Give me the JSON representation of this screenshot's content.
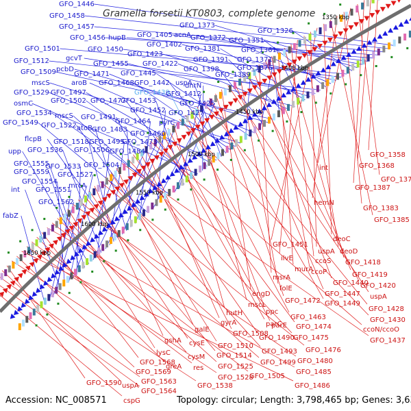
{
  "title": "Gramella forsetii KT0803, complete genome",
  "footer": {
    "accession": "Accession: NC_008571",
    "topology": "Topology: circular; Length: 3,798,465 bp; Genes: 3,637"
  },
  "colors": {
    "forward": "#1a1ae0",
    "reverse": "#e01a1a",
    "backbone": "#6e6e6e",
    "tick": "#1e8a1e",
    "highlight": "#5aaef0"
  },
  "kbp_markers": [
    "1350 kbp",
    "1400 kbp",
    "1450 kbp",
    "1500 kbp",
    "1550 kbp",
    "1600 kbp",
    "1650 kbp"
  ],
  "forward_labels": [
    "GFO_1446",
    "GFO_1458",
    "GFO_1457",
    "GFO_1456",
    "hupB",
    "GFO_1405",
    "acnA",
    "GFO_1373",
    "GFO_1326",
    "GFO_1501",
    "GFO_1450",
    "GFO_1402",
    "GFO_1372",
    "GFO_1351",
    "GFO_1512",
    "gcvT",
    "GFO_1423",
    "GFO_1381",
    "GFO_1361",
    "GFO_1455",
    "GFO_1422",
    "GFO_1391",
    "GFO_1371",
    "GFO_1509",
    "pcbD",
    "GFO_1398",
    "GFO_1376",
    "GFO_1471",
    "GFO_1445",
    "GFO_1389",
    "mscS",
    "aroB",
    "GFO_1468",
    "GFO_1442",
    "uspA",
    "GFO_1529",
    "GFO_1497",
    "GFO_1439",
    "dnrN",
    "osmC",
    "GFO_1502",
    "GFO_1477",
    "GFO_1453",
    "GFO_1412",
    "GFO_1425",
    "GFO_1534",
    "mscS",
    "GFO_1491",
    "GFO_1452",
    "GFO_1427",
    "GFO_1549",
    "GFO_1522",
    "GFO_1464",
    "pyrC",
    "GFO_1483",
    "atoB",
    "GFO_1460",
    "flcpB",
    "GFO_1518",
    "GFO_1495",
    "GFO_1473",
    "GFO_1536",
    "GFO_1506",
    "GFO_1484",
    "upp",
    "GFO_1555",
    "GFO_1559",
    "GFO_1533",
    "GFO_1504",
    "GFO_1527",
    "GFO_1554",
    "int",
    "GFO_1551",
    "mrcA",
    "GFO_1562",
    "fabZ"
  ],
  "reverse_labels": [
    "GFO_1358",
    "GFO_1368",
    "GFO_1387",
    "GFO_1377",
    "int",
    "GFO_1383",
    "hemN",
    "GFO_1385",
    "deoC",
    "GFO_1451",
    "uspA",
    "deoD",
    "ilvE",
    "ccoS",
    "GFO_1418",
    "murA",
    "ccoP",
    "GFO_1419",
    "msrA",
    "GFO_1440",
    "GFO_1420",
    "folE",
    "GFO_1447",
    "uspA",
    "engD",
    "GFO_1472",
    "GFO_1449",
    "GFO_1428",
    "mscL",
    "ppc",
    "GFO_1463",
    "GFO_1430",
    "hutH",
    "parE",
    "parC",
    "GFO_1474",
    "ccoN/ccoO",
    "gyrA",
    "GFO_1508",
    "GFO_1490",
    "GFO_1475",
    "GFO_1437",
    "galE",
    "GFO_1510",
    "GFO_1493",
    "GFO_1476",
    "gshA",
    "cysE",
    "GFO_1514",
    "GFO_1499",
    "GFO_1480",
    "lysC",
    "cysM",
    "GFO_1525",
    "GFO_1505",
    "GFO_1485",
    "GFO_1568",
    "greA",
    "res",
    "GFO_1528",
    "GFO_1486",
    "GFO_1569",
    "GFO_1538",
    "GFO_1590",
    "uspA",
    "GFO_1563",
    "GFO_1564",
    "cspG"
  ]
}
